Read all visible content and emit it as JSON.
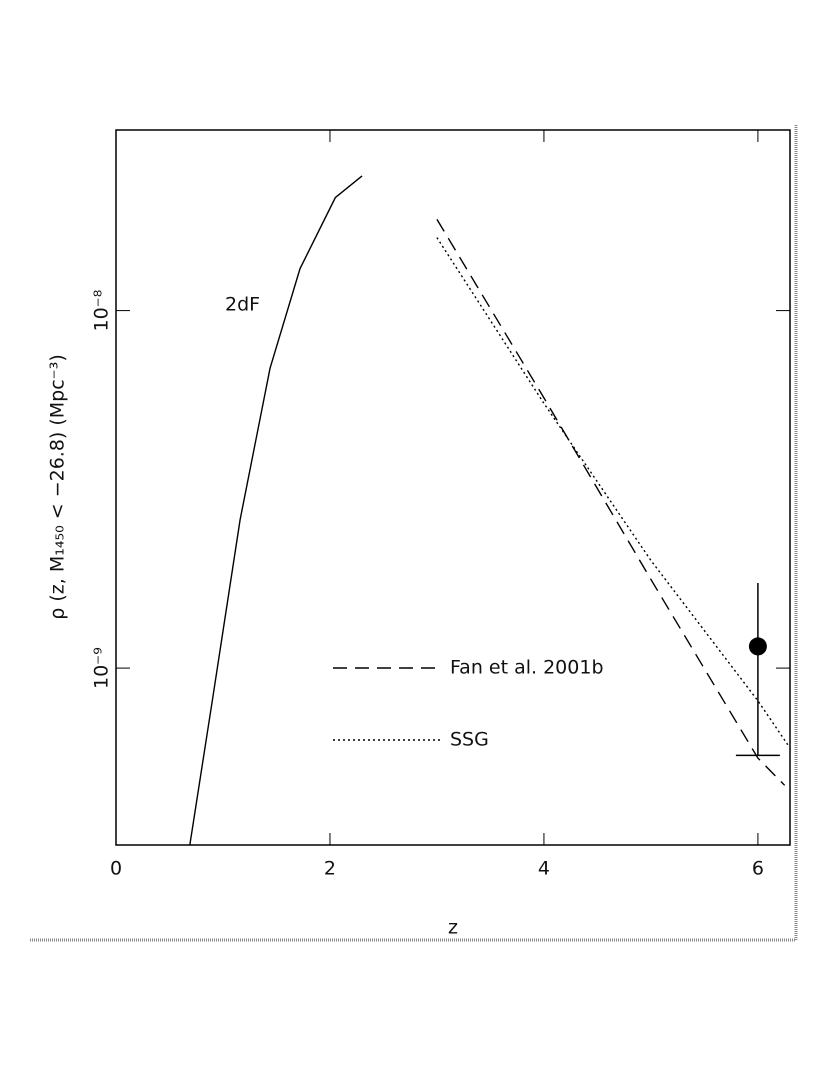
{
  "chart_data": {
    "type": "line",
    "y_label": "ρ (z, M₁₄₅₀ < −26.8) (Mpc⁻³)",
    "x_label": "z",
    "xlim": [
      0,
      6.3
    ],
    "ylim": [
      3.2e-10,
      3.2e-08
    ],
    "log_y": true,
    "xticks": [
      0,
      2,
      4,
      6
    ],
    "yticks": [
      {
        "value": 1e-09,
        "label": "10⁻⁹"
      },
      {
        "value": 1e-08,
        "label": "10⁻⁸"
      }
    ],
    "series": [
      {
        "name": "2dF",
        "color": "#000000",
        "style": "solid",
        "x": [
          0.69,
          0.9,
          1.16,
          1.44,
          1.72,
          2.05,
          2.3
        ],
        "values": [
          3.2e-10,
          8.1e-10,
          2.6e-09,
          6.9e-09,
          1.31e-08,
          2.07e-08,
          2.38e-08
        ]
      },
      {
        "name": "Fan et al. 2001b",
        "color": "#000000",
        "style": "dashed",
        "x": [
          3.0,
          4.0,
          5.0,
          6.0,
          6.25
        ],
        "values": [
          1.8e-08,
          5.7e-09,
          1.77e-09,
          5.6e-10,
          4.7e-10
        ]
      },
      {
        "name": "SSG",
        "color": "#000000",
        "style": "dotted",
        "x": [
          3.0,
          4.0,
          5.0,
          6.0,
          6.28
        ],
        "values": [
          1.6e-08,
          5.5e-09,
          2e-09,
          8.1e-10,
          6.1e-10
        ]
      },
      {
        "type": "scatter",
        "color": "#000000",
        "x": [
          6.0
        ],
        "values": [
          1.15e-09
        ],
        "yerr": [
          5.8e-10
        ]
      }
    ]
  }
}
